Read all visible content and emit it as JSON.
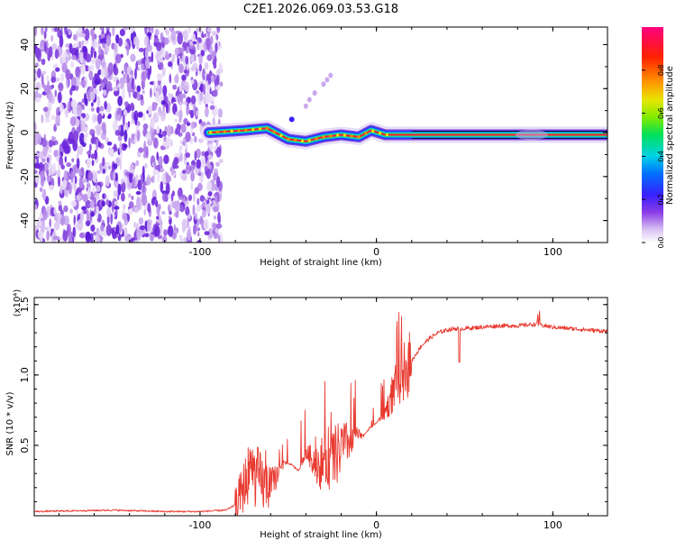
{
  "title": "C2E1.2026.069.03.53.G18",
  "chart_data": [
    {
      "type": "heatmap",
      "xlabel": "Height of straight line (km)",
      "ylabel": "Frequency (Hz)",
      "xlim": [
        -194,
        131
      ],
      "ylim": [
        -50,
        48
      ],
      "xticks": [
        -100,
        0,
        100
      ],
      "xtick_labels": [
        "-100",
        "0",
        "100"
      ],
      "yticks": [
        -40,
        -20,
        0,
        20,
        40
      ],
      "ytick_labels": [
        "-40",
        "-20",
        "0",
        "20",
        "40"
      ],
      "colorbar": {
        "label": "Normalized spectral amplitude",
        "range": [
          0,
          1
        ],
        "ticks": [
          0.0,
          0.2,
          0.4,
          0.6,
          0.8
        ],
        "tick_labels": [
          "0.0",
          "0.2",
          "0.4",
          "0.6",
          "0.8"
        ]
      },
      "signal_track": [
        {
          "x": -95,
          "y": 0
        },
        {
          "x": -75,
          "y": 1
        },
        {
          "x": -62,
          "y": 2
        },
        {
          "x": -50,
          "y": -3
        },
        {
          "x": -40,
          "y": -4
        },
        {
          "x": -30,
          "y": -2
        },
        {
          "x": -20,
          "y": -1
        },
        {
          "x": -10,
          "y": -2
        },
        {
          "x": -3,
          "y": 1
        },
        {
          "x": 5,
          "y": -1
        },
        {
          "x": 20,
          "y": -1
        },
        {
          "x": 131,
          "y": -1
        }
      ]
    },
    {
      "type": "line",
      "xlabel": "Height of straight line (km)",
      "ylabel": "SNR (10 * v/v)",
      "y_multiplier": "(x10⁴)",
      "xlim": [
        -194,
        131
      ],
      "ylim": [
        0.0,
        1.55
      ],
      "xticks": [
        -100,
        0,
        100
      ],
      "xtick_labels": [
        "-100",
        "0",
        "100"
      ],
      "yticks": [
        0.5,
        1.0,
        1.5
      ],
      "ytick_labels": [
        "0.5",
        "1.0",
        "1.5"
      ],
      "series": [
        {
          "name": "SNR",
          "color": "#e83a30",
          "x": [
            -194,
            -150,
            -120,
            -100,
            -85,
            -80,
            -76,
            -72,
            -68,
            -64,
            -60,
            -56,
            -52,
            -48,
            -44,
            -40,
            -36,
            -32,
            -28,
            -24,
            -20,
            -16,
            -12,
            -8,
            -4,
            0,
            4,
            8,
            12,
            16,
            20,
            25,
            30,
            35,
            40,
            45,
            50,
            60,
            70,
            80,
            90,
            95,
            100,
            110,
            120,
            131
          ],
          "y": [
            0.03,
            0.04,
            0.03,
            0.03,
            0.04,
            0.08,
            0.18,
            0.32,
            0.28,
            0.22,
            0.2,
            0.3,
            0.38,
            0.36,
            0.32,
            0.45,
            0.4,
            0.36,
            0.42,
            0.4,
            0.48,
            0.52,
            0.58,
            0.56,
            0.62,
            0.66,
            0.72,
            0.82,
            0.96,
            1.04,
            1.1,
            1.2,
            1.26,
            1.3,
            1.32,
            1.33,
            1.33,
            1.34,
            1.35,
            1.35,
            1.36,
            1.35,
            1.34,
            1.33,
            1.32,
            1.31
          ]
        }
      ]
    }
  ]
}
